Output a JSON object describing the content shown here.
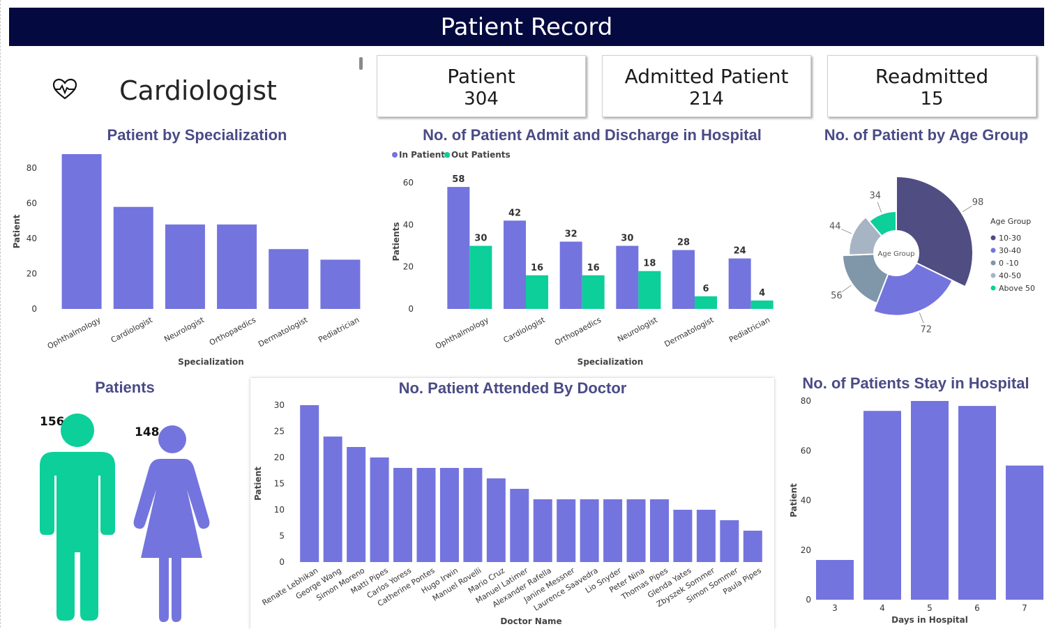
{
  "header": {
    "title": "Patient Record"
  },
  "doctor_filter": {
    "label": "Cardiologist",
    "icon": "heart-pulse-icon"
  },
  "kpis": [
    {
      "label": "Patient",
      "value": "304"
    },
    {
      "label": "Admitted Patient",
      "value": "214"
    },
    {
      "label": "Readmitted",
      "value": "15"
    }
  ],
  "colors": {
    "header": "#040a40",
    "purple": "#7474df",
    "teal": "#0ccf9a",
    "title": "#4a4b86"
  },
  "gender": {
    "title": "Patients",
    "male_count": "156",
    "female_count": "148",
    "male_icon": "male-person-icon",
    "female_icon": "female-person-icon"
  },
  "chart_data": [
    {
      "id": "spec",
      "type": "bar",
      "title": "Patient by Specialization",
      "xlabel": "Specialization",
      "ylabel": "Patient",
      "categories": [
        "Ophthalmology",
        "Cardiologist",
        "Neurologist",
        "Orthopaedics",
        "Dermatologist",
        "Pediatrician"
      ],
      "values": [
        88,
        58,
        48,
        48,
        34,
        28
      ],
      "ylim": [
        0,
        88
      ],
      "yticks": [
        0,
        20,
        40,
        60,
        80
      ]
    },
    {
      "id": "admit",
      "type": "bar",
      "title": "No. of Patient Admit and Discharge in Hospital",
      "xlabel": "Specialization",
      "ylabel": "Patients",
      "categories": [
        "Ophthalmology",
        "Cardiologist",
        "Orthopaedics",
        "Neurologist",
        "Dermatologist",
        "Pediatrician"
      ],
      "series": [
        {
          "name": "In Patients",
          "values": [
            58,
            42,
            32,
            30,
            28,
            24
          ]
        },
        {
          "name": "Out Patients",
          "values": [
            30,
            16,
            16,
            18,
            6,
            4
          ]
        }
      ],
      "ylim": [
        0,
        64
      ],
      "yticks": [
        0,
        20,
        40,
        60
      ],
      "legend": "top-left"
    },
    {
      "id": "age",
      "type": "pie",
      "title": "No. of Patient by Age Group",
      "center_label": "Age Group",
      "legend_title": "Age Group",
      "legend": "right",
      "slices": [
        {
          "label": "10-30",
          "value": 98,
          "color": "#4f4d82"
        },
        {
          "label": "30-40",
          "value": 72,
          "color": "#7474df"
        },
        {
          "label": "0 -10",
          "value": 56,
          "color": "#8096a9"
        },
        {
          "label": "40-50",
          "value": 44,
          "color": "#a6b4c4"
        },
        {
          "label": "Above 50",
          "value": 34,
          "color": "#0ccf9a"
        }
      ]
    },
    {
      "id": "doctor",
      "type": "bar",
      "title": "No. Patient Attended By Doctor",
      "xlabel": "Doctor Name",
      "ylabel": "Patient",
      "categories": [
        "Renate Lebhikan",
        "George Wang",
        "Simon Moreno",
        "Matti Pipes",
        "Carlos Yoress",
        "Catherine Pontes",
        "Hugo Irwin",
        "Manuel Rovelli",
        "Mario Cruz",
        "Manuel Latimer",
        "Alexander Rafella",
        "Janine Messner",
        "Laurence Saavedra",
        "Lio Snyder",
        "Peter Nina",
        "Thomas Pipes",
        "Glenda Yates",
        "Zbyszek Sommer",
        "Simon Sommer",
        "Paula Pipes"
      ],
      "values": [
        30,
        24,
        22,
        20,
        18,
        18,
        18,
        18,
        16,
        14,
        12,
        12,
        12,
        12,
        12,
        12,
        10,
        10,
        8,
        6
      ],
      "ylim": [
        0,
        30
      ],
      "yticks": [
        0,
        5,
        10,
        15,
        20,
        25,
        30
      ]
    },
    {
      "id": "stay",
      "type": "bar",
      "title": "No. of Patients Stay in Hospital",
      "xlabel": "Days in Hospital",
      "ylabel": "Patient",
      "categories": [
        "3",
        "4",
        "5",
        "6",
        "7"
      ],
      "values": [
        16,
        76,
        80,
        78,
        54
      ],
      "ylim": [
        0,
        80
      ],
      "yticks": [
        0,
        20,
        40,
        60,
        80
      ]
    }
  ]
}
